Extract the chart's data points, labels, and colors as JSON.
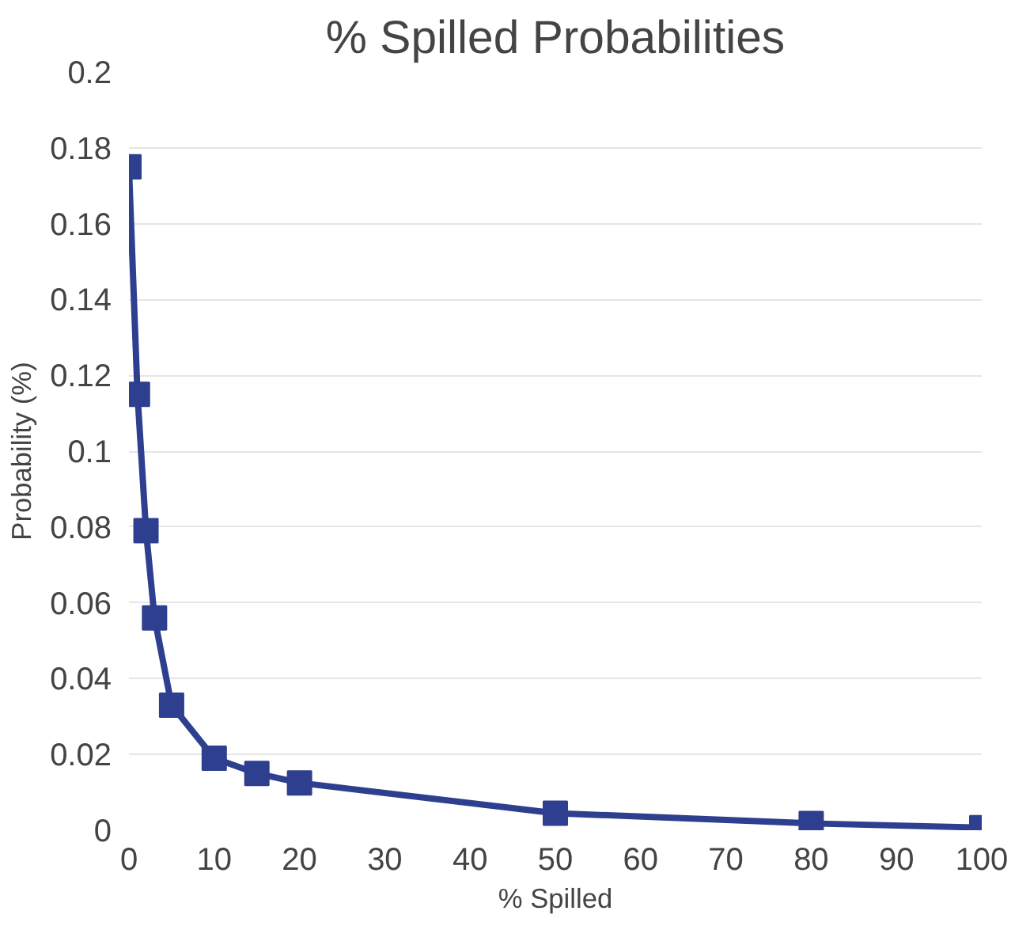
{
  "chart_data": {
    "type": "line",
    "title": "% Spilled Probabilities",
    "xlabel": "% Spilled",
    "ylabel": "Probability (%)",
    "x": [
      0,
      1,
      2,
      3,
      5,
      10,
      15,
      20,
      50,
      80,
      100
    ],
    "series": [
      {
        "color": "#2e3f8f",
        "values": [
          0.175,
          0.115,
          0.079,
          0.056,
          0.033,
          0.019,
          0.015,
          0.0125,
          0.0045,
          0.0018,
          0.0007
        ]
      }
    ],
    "xlim": [
      0,
      100
    ],
    "xticks": [
      0,
      10,
      20,
      30,
      40,
      50,
      60,
      70,
      80,
      90,
      100
    ],
    "ylim": [
      0,
      0.2
    ],
    "yticks": [
      0,
      0.02,
      0.04,
      0.06,
      0.08,
      0.1,
      0.12,
      0.14,
      0.16,
      0.18,
      0.2
    ],
    "grid": "y",
    "marker": "square",
    "line_style": "solid"
  }
}
